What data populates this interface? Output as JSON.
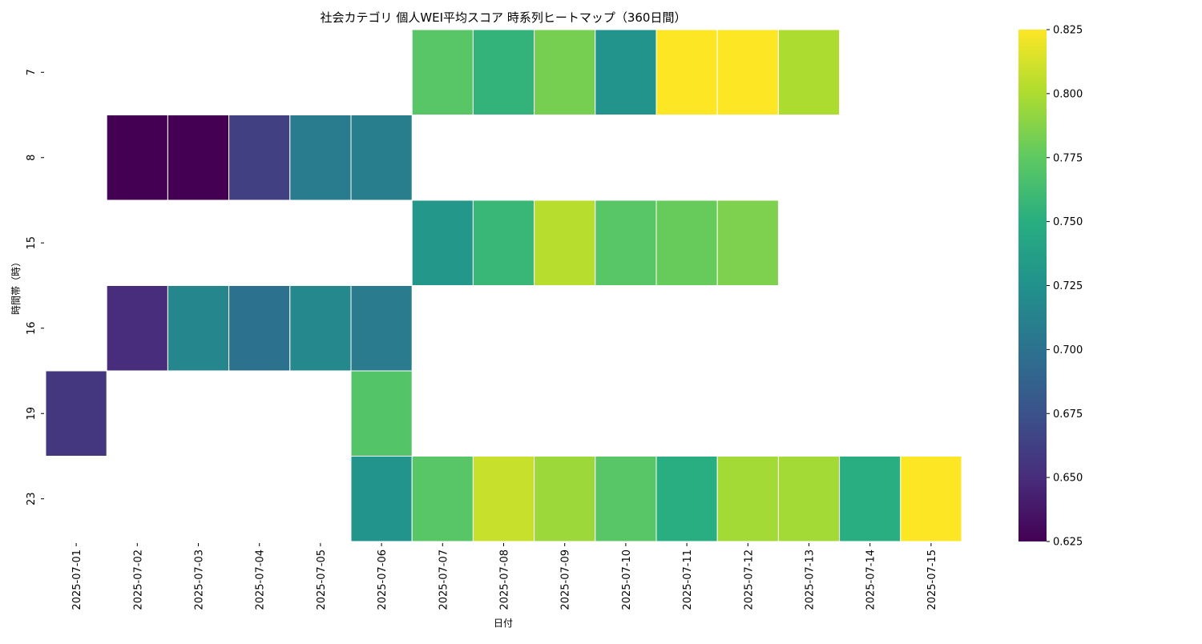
{
  "chart_data": {
    "type": "heatmap",
    "title": "社会カテゴリ 個人WEI平均スコア 時系列ヒートマップ（360日間）",
    "xlabel": "日付",
    "ylabel": "時間帯（時）",
    "x_categories": [
      "2025-07-01",
      "2025-07-02",
      "2025-07-03",
      "2025-07-04",
      "2025-07-05",
      "2025-07-06",
      "2025-07-07",
      "2025-07-08",
      "2025-07-09",
      "2025-07-10",
      "2025-07-11",
      "2025-07-12",
      "2025-07-13",
      "2025-07-14",
      "2025-07-15"
    ],
    "y_categories": [
      "7",
      "8",
      "15",
      "16",
      "19",
      "23"
    ],
    "values": [
      [
        null,
        null,
        null,
        null,
        null,
        null,
        0.772,
        0.755,
        0.783,
        0.728,
        0.825,
        0.825,
        0.8,
        null,
        null
      ],
      [
        null,
        0.625,
        0.625,
        0.663,
        0.708,
        0.71,
        null,
        null,
        null,
        null,
        null,
        null,
        null,
        null,
        null
      ],
      [
        null,
        null,
        null,
        null,
        null,
        null,
        0.73,
        0.758,
        0.803,
        0.772,
        0.778,
        0.785,
        null,
        null,
        null
      ],
      [
        null,
        0.65,
        0.716,
        0.7,
        0.718,
        0.707,
        null,
        null,
        null,
        null,
        null,
        null,
        null,
        null,
        null
      ],
      [
        0.656,
        null,
        null,
        null,
        null,
        0.77,
        null,
        null,
        null,
        null,
        null,
        null,
        null,
        null,
        null
      ],
      [
        null,
        null,
        null,
        null,
        null,
        0.728,
        0.772,
        0.808,
        0.795,
        0.772,
        0.75,
        0.797,
        0.797,
        0.75,
        0.825
      ]
    ],
    "colorbar": {
      "colormap": "viridis",
      "min": 0.625,
      "max": 0.825,
      "ticks": [
        "0.625",
        "0.650",
        "0.675",
        "0.700",
        "0.725",
        "0.750",
        "0.775",
        "0.800",
        "0.825"
      ]
    }
  }
}
